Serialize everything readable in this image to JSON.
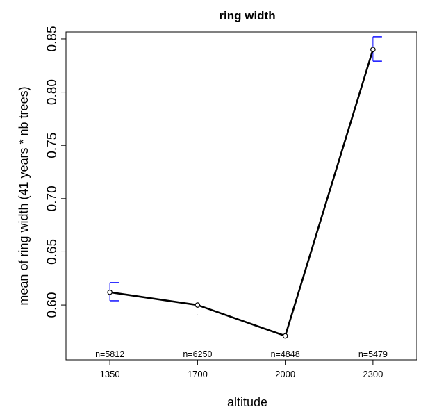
{
  "chart_data": {
    "type": "line",
    "title": "ring width",
    "xlabel": "altitude",
    "ylabel": "mean of ring width (41 years * nb trees)",
    "categories": [
      "1350",
      "1700",
      "2000",
      "2300"
    ],
    "values": [
      0.612,
      0.6,
      0.571,
      0.84
    ],
    "error_bars": [
      {
        "low": 0.604,
        "high": 0.621
      },
      {
        "low": 0.591,
        "high": 0.591
      },
      {
        "low": 0.571,
        "high": 0.571
      },
      {
        "low": 0.829,
        "high": 0.852
      }
    ],
    "sample_labels": [
      "n=5812",
      "n=6250",
      "n=4848",
      "n=5479"
    ],
    "yticks": [
      "0.60",
      "0.65",
      "0.70",
      "0.75",
      "0.80",
      "0.85"
    ],
    "ylim": [
      0.5485,
      0.8565
    ],
    "xlim": [
      0.5,
      4.5
    ],
    "line_color": "#000000",
    "error_bar_color": "#0000ff",
    "grid": false,
    "legend": "none"
  }
}
